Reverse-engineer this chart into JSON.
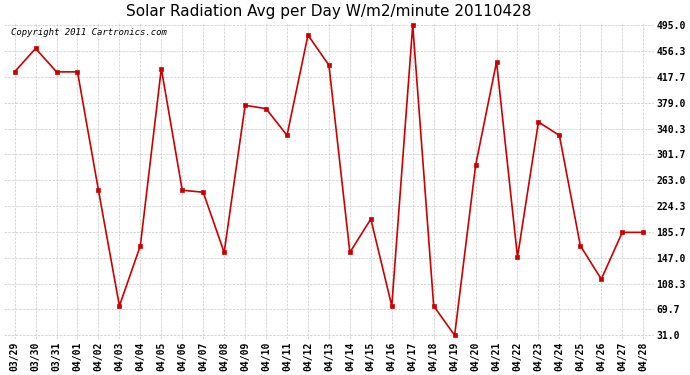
{
  "title": "Solar Radiation Avg per Day W/m2/minute 20110428",
  "copyright": "Copyright 2011 Cartronics.com",
  "dates": [
    "03/29",
    "03/30",
    "03/31",
    "04/01",
    "04/02",
    "04/03",
    "04/04",
    "04/05",
    "04/06",
    "04/07",
    "04/08",
    "04/09",
    "04/10",
    "04/11",
    "04/12",
    "04/13",
    "04/14",
    "04/15",
    "04/16",
    "04/17",
    "04/18",
    "04/19",
    "04/20",
    "04/21",
    "04/22",
    "04/23",
    "04/24",
    "04/25",
    "04/26",
    "04/27",
    "04/28"
  ],
  "values": [
    425,
    460,
    425,
    425,
    248,
    75,
    165,
    430,
    248,
    245,
    155,
    375,
    370,
    330,
    480,
    435,
    155,
    205,
    75,
    495,
    75,
    31,
    285,
    440,
    148,
    350,
    330,
    165,
    115,
    185,
    185
  ],
  "y_ticks": [
    31.0,
    69.7,
    108.3,
    147.0,
    185.7,
    224.3,
    263.0,
    301.7,
    340.3,
    379.0,
    417.7,
    456.3,
    495.0
  ],
  "ylim_min": 31.0,
  "ylim_max": 495.0,
  "line_color": "#cc0000",
  "marker": "s",
  "marker_size": 3,
  "bg_color": "#ffffff",
  "grid_color": "#c8c8c8",
  "title_fontsize": 11,
  "copyright_fontsize": 6.5,
  "tick_fontsize": 7
}
